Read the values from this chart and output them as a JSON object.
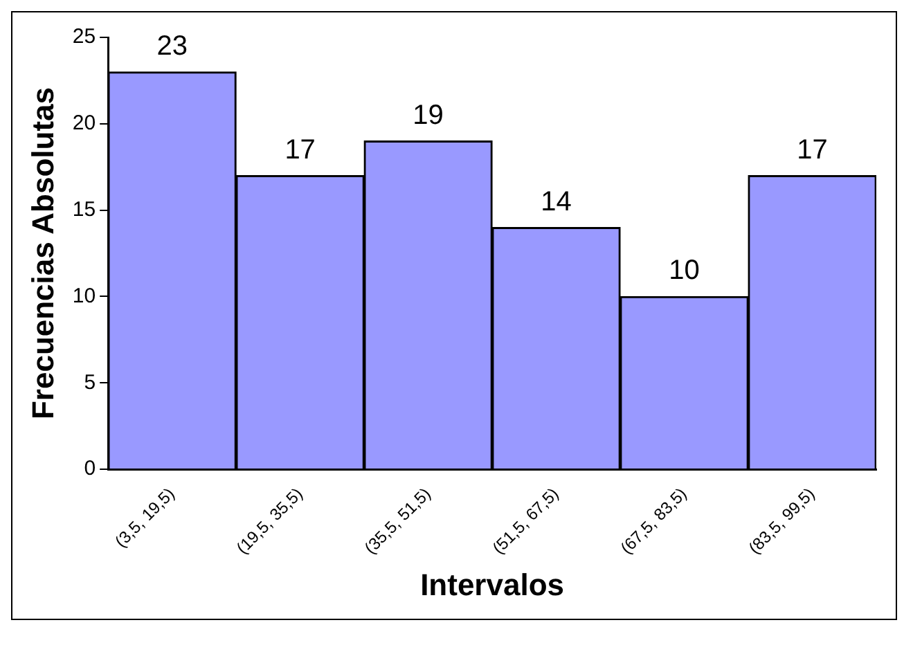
{
  "chart_data": {
    "type": "bar",
    "xlabel": "Intervalos",
    "ylabel": "Frecuencias Absolutas",
    "categories": [
      "(3,5, 19,5)",
      "(19,5, 35,5)",
      "(35,5, 51,5)",
      "(51,5, 67,5)",
      "(67,5, 83,5)",
      "(83,5, 99,5)"
    ],
    "values": [
      23,
      17,
      19,
      14,
      10,
      17
    ],
    "color": "#9999ff",
    "ylim": [
      0,
      25
    ],
    "yticks": [
      0,
      5,
      10,
      15,
      20,
      25
    ],
    "grid": false,
    "legend": false,
    "data_labels": true
  }
}
